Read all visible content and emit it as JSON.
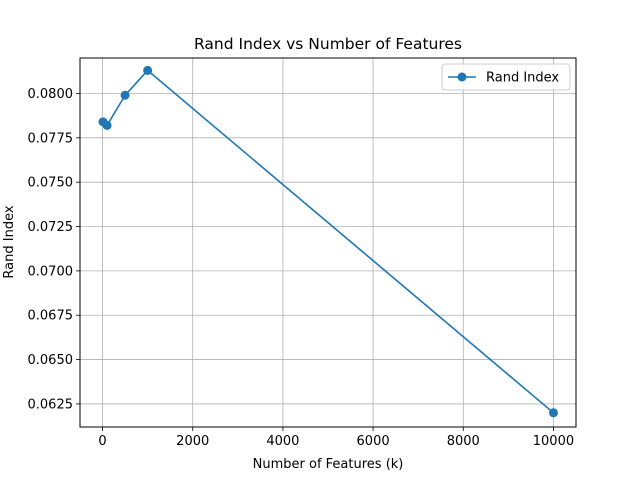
{
  "chart_data": {
    "type": "line",
    "title": "Rand Index vs Number of Features",
    "xlabel": "Number of Features (k)",
    "ylabel": "Rand Index",
    "xlim": [
      -500,
      10500
    ],
    "ylim": [
      0.0612,
      0.082
    ],
    "xticks": [
      0,
      2000,
      4000,
      6000,
      8000,
      10000
    ],
    "xtick_labels": [
      "0",
      "2000",
      "4000",
      "6000",
      "8000",
      "10000"
    ],
    "yticks": [
      0.0625,
      0.065,
      0.0675,
      0.07,
      0.0725,
      0.075,
      0.0775,
      0.08
    ],
    "ytick_labels": [
      "0.0625",
      "0.0650",
      "0.0675",
      "0.0700",
      "0.0725",
      "0.0750",
      "0.0775",
      "0.0800"
    ],
    "grid": true,
    "legend": "upper right",
    "series": [
      {
        "name": "Rand Index",
        "color": "#1f77b4",
        "marker": "circle",
        "x": [
          10,
          100,
          500,
          1000,
          10000
        ],
        "y": [
          0.0784,
          0.0782,
          0.0799,
          0.0813,
          0.062
        ]
      }
    ]
  }
}
